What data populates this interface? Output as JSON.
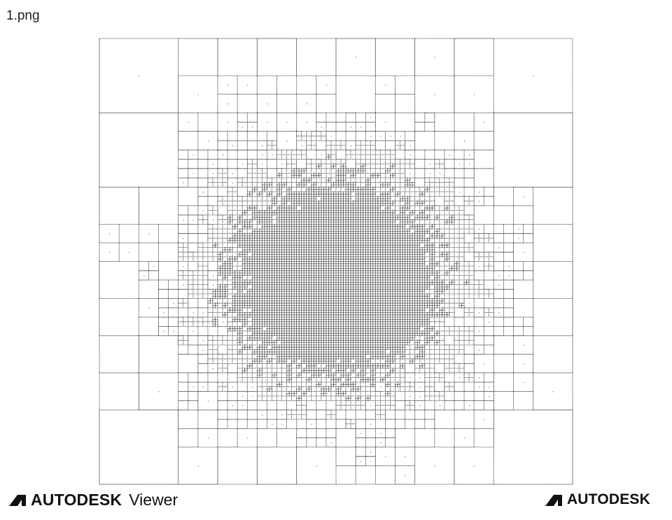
{
  "window": {
    "filename": "1.png"
  },
  "viewer": {
    "drawing_name": "quadtree-mesh-drawing",
    "stroke_color": "#3a3a3a",
    "background_color": "#ffffff"
  },
  "branding": {
    "left": {
      "logo_icon": "autodesk-logo-icon",
      "brand": "AUTODESK",
      "product": "Viewer"
    },
    "right": {
      "logo_icon": "autodesk-logo-icon",
      "brand": "AUTODESK"
    }
  }
}
